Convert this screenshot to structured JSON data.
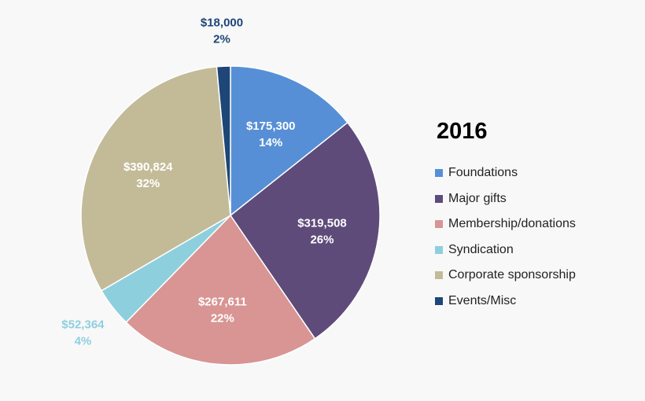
{
  "chart_data": {
    "type": "pie",
    "title": "2016",
    "start_angle": "12 o'clock",
    "direction": "clockwise",
    "slices": [
      {
        "name": "Foundations",
        "value": 175300,
        "percent": 14,
        "value_label": "$175,300",
        "percent_label": "14%",
        "color": "#578fd6",
        "label_color": "#ffffff",
        "label_placement": "inside"
      },
      {
        "name": "Major gifts",
        "value": 319508,
        "percent": 26,
        "value_label": "$319,508",
        "percent_label": "26%",
        "color": "#5e4b7a",
        "label_color": "#ffffff",
        "label_placement": "inside"
      },
      {
        "name": "Membership/donations",
        "value": 267611,
        "percent": 22,
        "value_label": "$267,611",
        "percent_label": "22%",
        "color": "#d89593",
        "label_color": "#ffffff",
        "label_placement": "inside"
      },
      {
        "name": "Syndication",
        "value": 52364,
        "percent": 4,
        "value_label": "$52,364",
        "percent_label": "4%",
        "color": "#8ecfde",
        "label_color": "#8ecfde",
        "label_placement": "outside"
      },
      {
        "name": "Corporate sponsorship",
        "value": 390824,
        "percent": 32,
        "value_label": "$390,824",
        "percent_label": "32%",
        "color": "#c3bb98",
        "label_color": "#ffffff",
        "label_placement": "inside"
      },
      {
        "name": "Events/Misc",
        "value": 18000,
        "percent": 2,
        "value_label": "$18,000",
        "percent_label": "2%",
        "color": "#1e4677",
        "label_color": "#1e4677",
        "label_placement": "outside"
      }
    ],
    "legend_position": "right"
  }
}
